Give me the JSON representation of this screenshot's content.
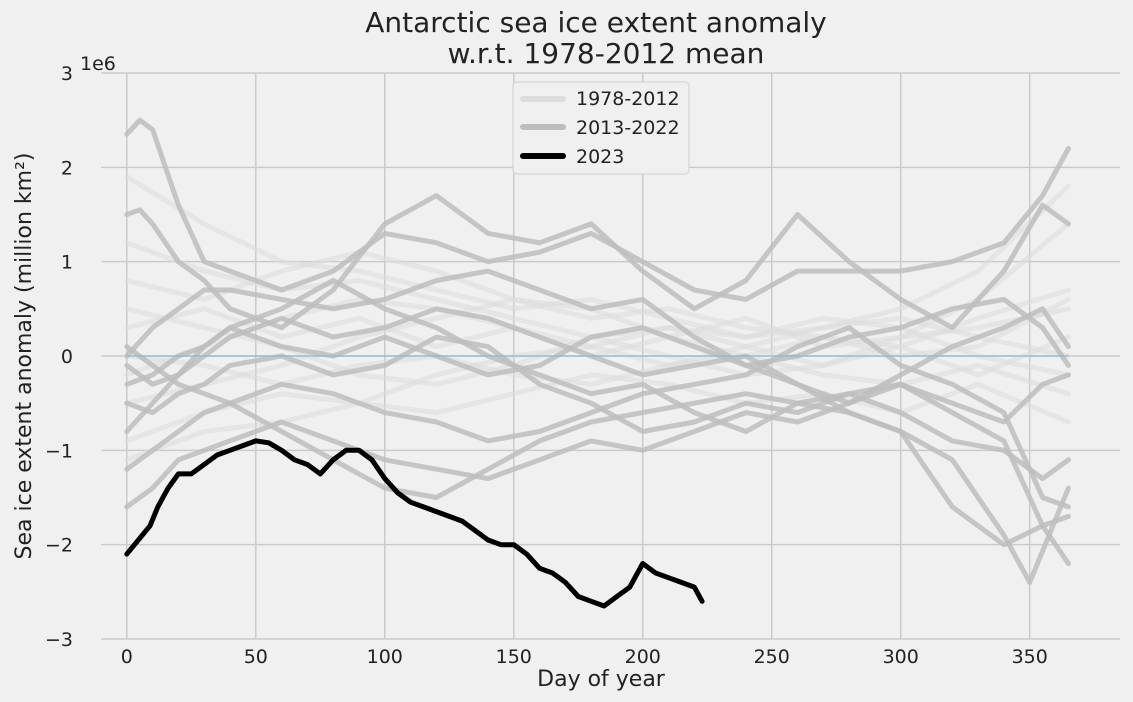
{
  "chart_data": {
    "type": "line",
    "title_line1": "Antarctic sea ice extent anomaly",
    "title_line2": "w.r.t. 1978-2012 mean",
    "xlabel": "Day of year",
    "ylabel": "Sea ice extent anomaly (million km²)",
    "y_multiplier_label": "1e6",
    "xlim": [
      -10,
      385
    ],
    "ylim": [
      -3,
      3
    ],
    "x_ticks": [
      0,
      50,
      100,
      150,
      200,
      250,
      300,
      350
    ],
    "y_ticks": [
      -3,
      -2,
      -1,
      0,
      1,
      2,
      3
    ],
    "y_tick_labels": [
      "−3",
      "−2",
      "−1",
      "0",
      "1",
      "2",
      "3"
    ],
    "grid": true,
    "legend_position": "top-center",
    "legend": [
      {
        "label": "1978-2012",
        "color": "#dcdcdc"
      },
      {
        "label": "2013-2022",
        "color": "#bdbdbd"
      },
      {
        "label": "2023",
        "color": "#000000"
      }
    ],
    "zero_line_color": "#8fb8d4",
    "series": [
      {
        "name": "1978-2012",
        "color": "#dcdcdc",
        "alpha": 0.55,
        "lines": [
          {
            "x": [
              0,
              30,
              60,
              90,
              120,
              150,
              180,
              210,
              240,
              270,
              300,
              330,
              365
            ],
            "y": [
              0.3,
              0.5,
              0.2,
              0.4,
              0.1,
              0.3,
              0.0,
              0.2,
              0.4,
              0.1,
              0.2,
              0.3,
              0.5
            ]
          },
          {
            "x": [
              0,
              30,
              60,
              90,
              120,
              150,
              180,
              210,
              240,
              270,
              300,
              330,
              365
            ],
            "y": [
              -0.2,
              0.1,
              0.4,
              0.6,
              0.5,
              0.3,
              0.1,
              -0.1,
              0.0,
              0.2,
              0.1,
              -0.2,
              0.2
            ]
          },
          {
            "x": [
              0,
              30,
              60,
              90,
              120,
              150,
              180,
              210,
              240,
              270,
              300,
              330,
              365
            ],
            "y": [
              1.2,
              0.9,
              0.7,
              0.8,
              0.6,
              0.4,
              0.2,
              0.3,
              0.1,
              -0.1,
              0.2,
              0.6,
              1.4
            ]
          },
          {
            "x": [
              0,
              30,
              60,
              90,
              120,
              150,
              180,
              210,
              240,
              270,
              300,
              330,
              365
            ],
            "y": [
              -0.5,
              -0.3,
              -0.1,
              0.2,
              0.4,
              0.6,
              0.5,
              0.2,
              0.0,
              -0.2,
              -0.3,
              -0.1,
              -0.4
            ]
          },
          {
            "x": [
              0,
              30,
              60,
              90,
              120,
              150,
              180,
              210,
              240,
              270,
              300,
              330,
              365
            ],
            "y": [
              0.8,
              0.6,
              0.9,
              1.1,
              0.9,
              0.6,
              0.4,
              0.5,
              0.3,
              0.2,
              0.0,
              0.1,
              0.6
            ]
          },
          {
            "x": [
              0,
              30,
              60,
              90,
              120,
              150,
              180,
              210,
              240,
              270,
              300,
              330,
              365
            ],
            "y": [
              -0.9,
              -0.6,
              -0.4,
              -0.5,
              -0.2,
              0.0,
              0.1,
              0.3,
              0.2,
              0.4,
              0.3,
              0.0,
              -0.2
            ]
          },
          {
            "x": [
              0,
              30,
              60,
              90,
              120,
              150,
              180,
              210,
              240,
              270,
              300,
              330,
              365
            ],
            "y": [
              0.0,
              -0.1,
              -0.3,
              -0.1,
              0.0,
              -0.2,
              -0.3,
              -0.1,
              0.1,
              0.3,
              0.4,
              0.2,
              0.0
            ]
          },
          {
            "x": [
              0,
              30,
              60,
              90,
              120,
              150,
              180,
              210,
              240,
              270,
              300,
              330,
              365
            ],
            "y": [
              1.9,
              1.4,
              1.0,
              0.9,
              0.7,
              0.5,
              0.6,
              0.4,
              0.2,
              0.3,
              0.5,
              0.9,
              1.8
            ]
          },
          {
            "x": [
              0,
              30,
              60,
              90,
              120,
              150,
              180,
              210,
              240,
              270,
              300,
              330,
              365
            ],
            "y": [
              -1.1,
              -0.8,
              -0.7,
              -0.5,
              -0.6,
              -0.4,
              -0.2,
              -0.3,
              -0.5,
              -0.4,
              -0.6,
              -0.3,
              -0.7
            ]
          },
          {
            "x": [
              0,
              30,
              60,
              90,
              120,
              150,
              180,
              210,
              240,
              270,
              300,
              330,
              365
            ],
            "y": [
              0.5,
              0.3,
              0.1,
              -0.2,
              -0.3,
              -0.1,
              0.2,
              0.0,
              -0.2,
              -0.1,
              0.1,
              0.4,
              0.7
            ]
          }
        ]
      },
      {
        "name": "2013-2022",
        "color": "#bdbdbd",
        "alpha": 0.85,
        "lines": [
          {
            "x": [
              0,
              5,
              10,
              20,
              30,
              40,
              60,
              80,
              100,
              120,
              140,
              160,
              180,
              200,
              220,
              240,
              260,
              280,
              300,
              320,
              340,
              355,
              365
            ],
            "y": [
              2.35,
              2.5,
              2.4,
              1.6,
              1.0,
              0.9,
              0.7,
              0.9,
              1.3,
              1.2,
              1.0,
              1.1,
              1.3,
              1.0,
              0.7,
              0.6,
              0.9,
              0.9,
              0.9,
              1.0,
              1.2,
              1.7,
              2.2
            ]
          },
          {
            "x": [
              0,
              5,
              10,
              20,
              30,
              40,
              60,
              80,
              100,
              120,
              140,
              160,
              180,
              200,
              220,
              240,
              260,
              280,
              300,
              320,
              340,
              355,
              365
            ],
            "y": [
              1.5,
              1.55,
              1.4,
              1.0,
              0.8,
              0.5,
              0.3,
              0.7,
              1.4,
              1.7,
              1.3,
              1.2,
              1.4,
              0.9,
              0.5,
              0.8,
              1.5,
              1.0,
              0.6,
              0.3,
              0.9,
              1.6,
              1.4
            ]
          },
          {
            "x": [
              0,
              10,
              20,
              30,
              40,
              60,
              80,
              100,
              120,
              140,
              160,
              180,
              200,
              220,
              240,
              260,
              280,
              300,
              320,
              340,
              355,
              365
            ],
            "y": [
              0.0,
              0.3,
              0.5,
              0.7,
              0.7,
              0.6,
              0.5,
              0.6,
              0.8,
              0.9,
              0.7,
              0.5,
              0.6,
              0.2,
              -0.1,
              -0.3,
              -0.5,
              -0.2,
              0.1,
              0.3,
              0.5,
              0.1
            ]
          },
          {
            "x": [
              0,
              10,
              20,
              30,
              40,
              60,
              80,
              100,
              120,
              140,
              160,
              180,
              200,
              220,
              240,
              260,
              280,
              300,
              320,
              340,
              355,
              365
            ],
            "y": [
              -0.1,
              -0.3,
              -0.2,
              0.1,
              0.3,
              0.5,
              0.8,
              0.5,
              0.3,
              0.0,
              -0.2,
              -0.4,
              -0.3,
              -0.6,
              -0.8,
              -0.5,
              -0.4,
              -0.3,
              -0.5,
              -0.7,
              -0.3,
              -0.2
            ]
          },
          {
            "x": [
              0,
              10,
              20,
              30,
              40,
              60,
              80,
              100,
              120,
              140,
              160,
              180,
              200,
              220,
              240,
              260,
              280,
              300,
              320,
              340,
              355,
              365
            ],
            "y": [
              -0.5,
              -0.6,
              -0.4,
              -0.3,
              -0.1,
              0.0,
              -0.2,
              -0.1,
              0.2,
              0.1,
              -0.3,
              -0.5,
              -0.8,
              -0.7,
              -0.5,
              -0.6,
              -0.4,
              -0.6,
              -0.9,
              -1.0,
              -1.3,
              -1.1
            ]
          },
          {
            "x": [
              0,
              10,
              20,
              30,
              40,
              60,
              80,
              100,
              120,
              140,
              160,
              180,
              200,
              220,
              240,
              260,
              280,
              300,
              320,
              340,
              355,
              365
            ],
            "y": [
              -1.2,
              -1.0,
              -0.8,
              -0.6,
              -0.5,
              -0.3,
              -0.4,
              -0.6,
              -0.7,
              -0.9,
              -0.8,
              -0.6,
              -0.4,
              -0.3,
              -0.2,
              0.1,
              0.3,
              -0.1,
              -0.3,
              -0.6,
              -1.5,
              -1.6
            ]
          },
          {
            "x": [
              0,
              10,
              20,
              30,
              40,
              60,
              80,
              100,
              120,
              140,
              160,
              180,
              200,
              220,
              240,
              260,
              280,
              300,
              320,
              340,
              355,
              365
            ],
            "y": [
              -1.6,
              -1.4,
              -1.1,
              -1.0,
              -0.9,
              -0.7,
              -0.9,
              -1.1,
              -1.2,
              -1.3,
              -1.1,
              -0.9,
              -1.0,
              -0.8,
              -0.6,
              -0.7,
              -0.5,
              -0.3,
              -0.6,
              -0.9,
              -1.8,
              -1.7
            ]
          },
          {
            "x": [
              0,
              10,
              20,
              30,
              40,
              60,
              80,
              100,
              120,
              140,
              160,
              180,
              200,
              220,
              240,
              260,
              280,
              300,
              320,
              340,
              355,
              365
            ],
            "y": [
              -0.8,
              -0.5,
              -0.2,
              0.0,
              0.2,
              0.4,
              0.2,
              0.3,
              0.5,
              0.4,
              0.2,
              0.0,
              -0.2,
              -0.1,
              0.0,
              -0.3,
              -0.6,
              -0.8,
              -1.6,
              -2.0,
              -1.8,
              -2.2
            ]
          },
          {
            "x": [
              0,
              10,
              20,
              30,
              40,
              60,
              80,
              100,
              120,
              140,
              160,
              180,
              200,
              220,
              240,
              260,
              280,
              300,
              320,
              340,
              350,
              365
            ],
            "y": [
              0.1,
              -0.1,
              -0.3,
              -0.4,
              -0.5,
              -0.8,
              -1.1,
              -1.4,
              -1.5,
              -1.2,
              -0.9,
              -0.7,
              -0.6,
              -0.5,
              -0.4,
              -0.5,
              -0.6,
              -0.8,
              -1.1,
              -1.9,
              -2.4,
              -1.4
            ]
          },
          {
            "x": [
              0,
              10,
              20,
              30,
              40,
              60,
              80,
              100,
              120,
              140,
              160,
              180,
              200,
              220,
              240,
              260,
              280,
              300,
              320,
              340,
              355,
              365
            ],
            "y": [
              -0.3,
              -0.2,
              0.0,
              0.1,
              0.3,
              0.1,
              0.0,
              0.2,
              0.0,
              -0.2,
              -0.1,
              0.2,
              0.3,
              0.1,
              -0.1,
              0.0,
              0.2,
              0.3,
              0.5,
              0.6,
              0.3,
              -0.1
            ]
          }
        ]
      },
      {
        "name": "2023",
        "color": "#000000",
        "alpha": 1.0,
        "lines": [
          {
            "x": [
              0,
              3,
              6,
              9,
              12,
              16,
              20,
              25,
              30,
              35,
              40,
              45,
              50,
              55,
              60,
              65,
              70,
              75,
              80,
              85,
              90,
              95,
              100,
              105,
              110,
              115,
              120,
              125,
              130,
              135,
              140,
              145,
              150,
              155,
              160,
              165,
              170,
              175,
              180,
              185,
              190,
              195,
              200,
              205,
              210,
              215,
              220,
              223
            ],
            "y": [
              -2.1,
              -2.0,
              -1.9,
              -1.8,
              -1.6,
              -1.4,
              -1.25,
              -1.25,
              -1.15,
              -1.05,
              -1.0,
              -0.95,
              -0.9,
              -0.92,
              -1.0,
              -1.1,
              -1.15,
              -1.25,
              -1.1,
              -1.0,
              -1.0,
              -1.1,
              -1.3,
              -1.45,
              -1.55,
              -1.6,
              -1.65,
              -1.7,
              -1.75,
              -1.85,
              -1.95,
              -2.0,
              -2.0,
              -2.1,
              -2.25,
              -2.3,
              -2.4,
              -2.55,
              -2.6,
              -2.65,
              -2.55,
              -2.45,
              -2.2,
              -2.3,
              -2.35,
              -2.4,
              -2.45,
              -2.6
            ]
          }
        ]
      }
    ]
  }
}
